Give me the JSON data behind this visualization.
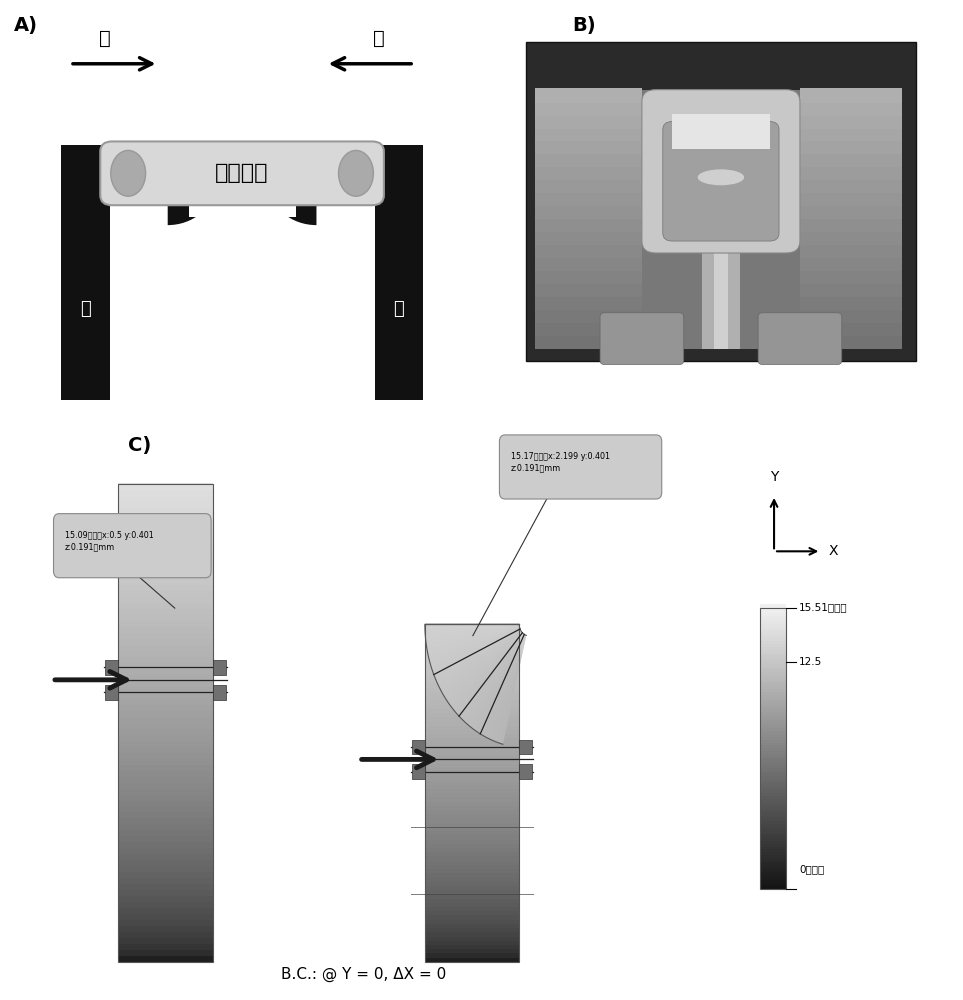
{
  "panel_A_label": "A)",
  "panel_B_label": "B)",
  "panel_C_label": "C)",
  "tissue_text": "心脏组织",
  "pillar_text": "柱",
  "force_text": "力",
  "bc_text": "B.C.: @ Y = 0, ΔX = 0",
  "tooltip1_line1": "15.09微米（x:0.5 y:0.401",
  "tooltip1_line2": "z:0.191）mm",
  "tooltip2_line1": "15.17微米（x:2.199 y:0.401",
  "tooltip2_line2": "z:0.191）mm",
  "legend_max_label": "15.51最大值",
  "legend_mid_label": "12.5",
  "legend_min_label": "0最小值",
  "axis_x_label": "X",
  "axis_y_label": "Y",
  "bg_color": "#ffffff",
  "black": "#111111",
  "tissue_fill": "#d8d8d8",
  "tissue_end": "#aaaaaa"
}
